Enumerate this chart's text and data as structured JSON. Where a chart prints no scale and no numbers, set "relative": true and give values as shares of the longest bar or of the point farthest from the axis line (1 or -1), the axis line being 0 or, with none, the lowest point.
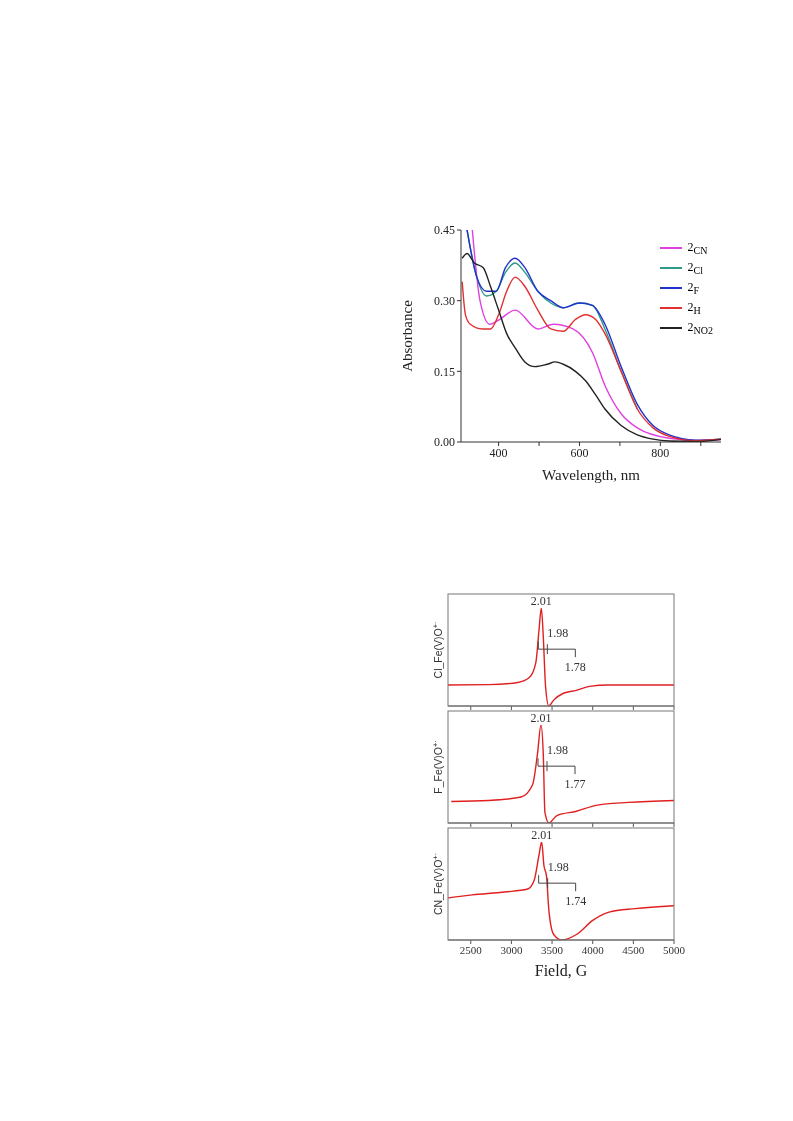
{
  "chart_data": [
    {
      "type": "line",
      "xlabel": "Wavelength, nm",
      "ylabel": "Absorbance",
      "xlim": [
        307,
        950
      ],
      "xticks": [
        400,
        {
          "value": 500,
          "label": null
        },
        600,
        {
          "value": 700,
          "label": null
        },
        800,
        {
          "value": 900,
          "label": null
        }
      ],
      "ylim": [
        0,
        0.45
      ],
      "yticks": [
        {
          "value": 0,
          "label": "0.00"
        },
        0.15,
        {
          "value": 0.3,
          "label": "0.30"
        },
        0.45
      ],
      "legend": "top right",
      "series": [
        {
          "name": "2$_{CN}$",
          "color": "#e040e0",
          "x": [
            335,
            354,
            378,
            402,
            441,
            497,
            536,
            584,
            632,
            663,
            703,
            743,
            822,
            901,
            950
          ],
          "values": [
            0.45,
            0.3,
            0.25,
            0.26,
            0.28,
            0.24,
            0.25,
            0.24,
            0.19,
            0.12,
            0.06,
            0.03,
            0.008,
            0.003,
            0.006
          ]
        },
        {
          "name": "2$_{Cl}$",
          "color": "#2e9a88",
          "x": [
            322,
            346,
            370,
            394,
            417,
            441,
            465,
            497,
            529,
            560,
            600,
            632,
            663,
            703,
            743
          ],
          "values": [
            0.45,
            0.35,
            0.31,
            0.32,
            0.36,
            0.38,
            0.36,
            0.32,
            0.295,
            0.285,
            0.295,
            0.29,
            0.24,
            0.15,
            0.07
          ]
        },
        {
          "name": "2$_{F}$",
          "color": "#2233cc",
          "x": [
            322,
            346,
            370,
            394,
            417,
            441,
            465,
            497,
            529,
            560,
            600,
            632,
            663,
            703,
            743,
            782,
            822,
            886,
            950
          ],
          "values": [
            0.45,
            0.35,
            0.32,
            0.32,
            0.37,
            0.39,
            0.37,
            0.32,
            0.3,
            0.285,
            0.295,
            0.29,
            0.25,
            0.16,
            0.08,
            0.035,
            0.015,
            0.004,
            0.006
          ]
        },
        {
          "name": "2$_{H}$",
          "color": "#e03030",
          "x": [
            310,
            318,
            330,
            360,
            380,
            400,
            420,
            441,
            465,
            497,
            529,
            560,
            590,
            615,
            640,
            663,
            703,
            743,
            782,
            822,
            886,
            950
          ],
          "values": [
            0.34,
            0.27,
            0.25,
            0.24,
            0.24,
            0.27,
            0.32,
            0.35,
            0.33,
            0.28,
            0.24,
            0.235,
            0.26,
            0.27,
            0.26,
            0.23,
            0.15,
            0.07,
            0.03,
            0.012,
            0.003,
            0.006
          ]
        },
        {
          "name": "2$_{NO2}$",
          "color": "#222222",
          "x": [
            310,
            322,
            340,
            362,
            380,
            400,
            420,
            441,
            465,
            490,
            520,
            540,
            560,
            590,
            615,
            640,
            663,
            703,
            743,
            782,
            822,
            886,
            950
          ],
          "values": [
            0.39,
            0.4,
            0.38,
            0.37,
            0.33,
            0.28,
            0.23,
            0.2,
            0.17,
            0.16,
            0.165,
            0.17,
            0.165,
            0.15,
            0.13,
            0.1,
            0.07,
            0.035,
            0.015,
            0.006,
            0.002,
            0.001,
            0.005
          ]
        }
      ]
    },
    {
      "type": "line",
      "relative": true,
      "ylabel": "Cl_Fe(V)O$^{+·}$",
      "xlim": [
        2220,
        5000
      ],
      "xticks": [
        2500,
        3000,
        3500,
        4000,
        4500,
        5000
      ],
      "tick_labels": false,
      "annotations": [
        "2.01",
        "1.98",
        "1.78"
      ],
      "series": [
        {
          "color": "#e02020",
          "x": [
            2220,
            2720,
            3080,
            3220,
            3300,
            3340,
            3368,
            3392,
            3420,
            3460,
            3520,
            3640,
            3800,
            3960,
            4200,
            5000
          ],
          "values": [
            0.215,
            0.218,
            0.24,
            0.29,
            0.44,
            0.78,
            1,
            0.71,
            0.2,
            0,
            0.06,
            0.13,
            0.16,
            0.2,
            0.215,
            0.215
          ]
        }
      ]
    },
    {
      "type": "line",
      "relative": true,
      "ylabel": "F_Fe(V)O$^{+·}$",
      "xlim": [
        2220,
        5000
      ],
      "xticks": [
        2500,
        3000,
        3500,
        4000,
        4500,
        5000
      ],
      "tick_labels": false,
      "annotations": [
        "2.01",
        "1.98",
        "1.77"
      ],
      "series": [
        {
          "color": "#e02020",
          "x": [
            2260,
            2720,
            3120,
            3260,
            3320,
            3364,
            3392,
            3412,
            3460,
            3560,
            3800,
            4040,
            4440,
            5000
          ],
          "values": [
            0.22,
            0.23,
            0.265,
            0.39,
            0.7,
            1,
            0.7,
            0.11,
            0,
            0.076,
            0.12,
            0.18,
            0.21,
            0.23
          ]
        }
      ]
    },
    {
      "type": "line",
      "relative": true,
      "xlabel": "Field, G",
      "ylabel": "CN_Fe(V)O$^{+·}$",
      "xlim": [
        2220,
        5000
      ],
      "xticks": [
        2500,
        3000,
        3500,
        4000,
        4500,
        5000
      ],
      "tick_labels": "x",
      "annotations": [
        "2.01",
        "1.98",
        "1.74"
      ],
      "series": [
        {
          "color": "#e02020",
          "x": [
            2220,
            2520,
            2920,
            3200,
            3280,
            3340,
            3372,
            3400,
            3432,
            3460,
            3520,
            3620,
            3800,
            4000,
            4200,
            4520,
            5000
          ],
          "values": [
            0.43,
            0.46,
            0.49,
            0.52,
            0.61,
            0.87,
            1,
            0.76,
            0.65,
            0.31,
            0.056,
            0,
            0.056,
            0.2,
            0.285,
            0.32,
            0.35
          ]
        }
      ]
    }
  ]
}
